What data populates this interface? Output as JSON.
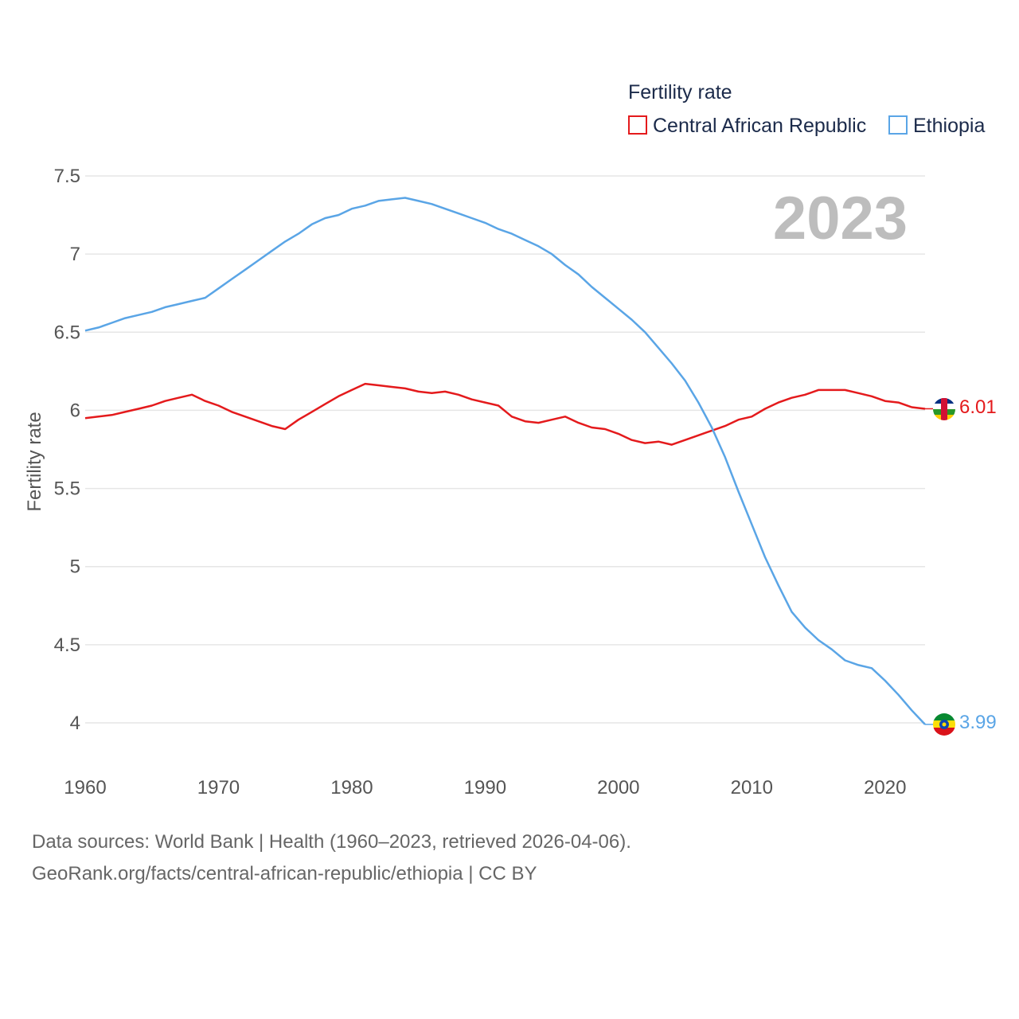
{
  "chart_data": {
    "type": "line",
    "legend_title": "Fertility rate",
    "ylabel": "Fertility rate",
    "year_label": "2023",
    "ylim": [
      3.8,
      7.6
    ],
    "xlim": [
      1960,
      2023
    ],
    "yticks": [
      {
        "value": 4,
        "label": "4"
      },
      {
        "value": 4.5,
        "label": "4.5"
      },
      {
        "value": 5,
        "label": "5"
      },
      {
        "value": 5.5,
        "label": "5.5"
      },
      {
        "value": 6,
        "label": "6"
      },
      {
        "value": 6.5,
        "label": "6.5"
      },
      {
        "value": 7,
        "label": "7"
      },
      {
        "value": 7.5,
        "label": "7.5"
      }
    ],
    "xticks": [
      {
        "value": 1960,
        "label": "1960"
      },
      {
        "value": 1970,
        "label": "1970"
      },
      {
        "value": 1980,
        "label": "1980"
      },
      {
        "value": 1990,
        "label": "1990"
      },
      {
        "value": 2000,
        "label": "2000"
      },
      {
        "value": 2010,
        "label": "2010"
      },
      {
        "value": 2020,
        "label": "2020"
      }
    ],
    "x": [
      1960,
      1961,
      1962,
      1963,
      1964,
      1965,
      1966,
      1967,
      1968,
      1969,
      1970,
      1971,
      1972,
      1973,
      1974,
      1975,
      1976,
      1977,
      1978,
      1979,
      1980,
      1981,
      1982,
      1983,
      1984,
      1985,
      1986,
      1987,
      1988,
      1989,
      1990,
      1991,
      1992,
      1993,
      1994,
      1995,
      1996,
      1997,
      1998,
      1999,
      2000,
      2001,
      2002,
      2003,
      2004,
      2005,
      2006,
      2007,
      2008,
      2009,
      2010,
      2011,
      2012,
      2013,
      2014,
      2015,
      2016,
      2017,
      2018,
      2019,
      2020,
      2021,
      2022,
      2023
    ],
    "series": [
      {
        "name": "Central African Republic",
        "color": "#e41a1c",
        "end_label": "6.01",
        "values": [
          5.95,
          5.96,
          5.97,
          5.99,
          6.01,
          6.03,
          6.06,
          6.08,
          6.1,
          6.06,
          6.03,
          5.99,
          5.96,
          5.93,
          5.9,
          5.88,
          5.94,
          5.99,
          6.04,
          6.09,
          6.13,
          6.17,
          6.16,
          6.15,
          6.14,
          6.12,
          6.11,
          6.12,
          6.1,
          6.07,
          6.05,
          6.03,
          5.96,
          5.93,
          5.92,
          5.94,
          5.96,
          5.92,
          5.89,
          5.88,
          5.85,
          5.81,
          5.79,
          5.8,
          5.78,
          5.81,
          5.84,
          5.87,
          5.9,
          5.94,
          5.96,
          6.01,
          6.05,
          6.08,
          6.1,
          6.13,
          6.13,
          6.13,
          6.11,
          6.09,
          6.06,
          6.05,
          6.02,
          6.01
        ]
      },
      {
        "name": "Ethiopia",
        "color": "#5aa5e6",
        "end_label": "3.99",
        "values": [
          6.51,
          6.53,
          6.56,
          6.59,
          6.61,
          6.63,
          6.66,
          6.68,
          6.7,
          6.72,
          6.78,
          6.84,
          6.9,
          6.96,
          7.02,
          7.08,
          7.13,
          7.19,
          7.23,
          7.25,
          7.29,
          7.31,
          7.34,
          7.35,
          7.36,
          7.34,
          7.32,
          7.29,
          7.26,
          7.23,
          7.2,
          7.16,
          7.13,
          7.09,
          7.05,
          7.0,
          6.93,
          6.87,
          6.79,
          6.72,
          6.65,
          6.58,
          6.5,
          6.4,
          6.3,
          6.19,
          6.05,
          5.89,
          5.7,
          5.48,
          5.27,
          5.06,
          4.88,
          4.71,
          4.61,
          4.53,
          4.47,
          4.4,
          4.37,
          4.35,
          4.27,
          4.18,
          4.08,
          3.99
        ]
      }
    ]
  },
  "source": {
    "line1": "Data sources: World Bank | Health (1960–2023, retrieved 2026-04-06).",
    "line2": "GeoRank.org/facts/central-african-republic/ethiopia | CC BY"
  }
}
